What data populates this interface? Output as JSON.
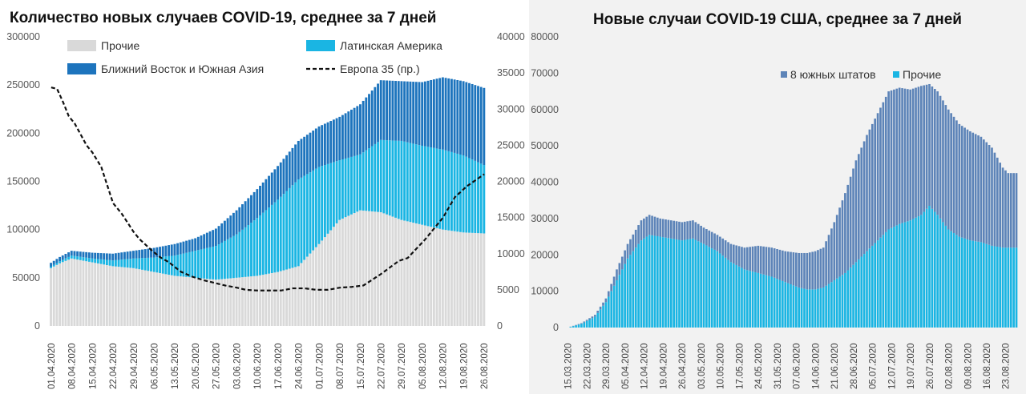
{
  "colors": {
    "others_grey": "#d9d9d9",
    "latam": "#1ab5e3",
    "me_sa": "#1d74bd",
    "europe": "#111111",
    "south8": "#5d84b8",
    "us_others": "#1ab5e3"
  },
  "chart_data": [
    {
      "type": "bar",
      "title": "Количество новых случаев COVID-19, среднее за 7 дней",
      "stacked": true,
      "series_names": [
        "Прочие",
        "Латинская Америка",
        "Ближний Восток и Южная Азия",
        "Европа 35 (пр.)"
      ],
      "legend": [
        "Прочие",
        "Латинская Америка",
        "Ближний Восток и Южная Азия",
        "Европа 35 (пр.)"
      ],
      "legend_position": "top",
      "x_ticks": [
        "01.04.2020",
        "08.04.2020",
        "15.04.2020",
        "22.04.2020",
        "29.04.2020",
        "06.05.2020",
        "13.05.2020",
        "20.05.2020",
        "27.05.2020",
        "03.06.2020",
        "10.06.2020",
        "17.06.2020",
        "24.06.2020",
        "01.07.2020",
        "08.07.2020",
        "15.07.2020",
        "22.07.2020",
        "29.07.2020",
        "05.08.2020",
        "12.08.2020",
        "19.08.2020",
        "26.08.2020"
      ],
      "y_ticks": [
        "0",
        "50000",
        "100000",
        "150000",
        "200000",
        "250000",
        "300000"
      ],
      "y2_ticks": [
        "0",
        "5000",
        "10000",
        "15000",
        "20000",
        "25000",
        "30000",
        "35000",
        "40000"
      ],
      "ylim": [
        0,
        300000
      ],
      "y2lim": [
        0,
        40000
      ],
      "x_start": "01.04.2020",
      "x_end": "26.08.2020",
      "keypoints": {
        "others": [
          [
            0,
            60000
          ],
          [
            3,
            65000
          ],
          [
            7,
            70000
          ],
          [
            14,
            66000
          ],
          [
            21,
            62000
          ],
          [
            28,
            60000
          ],
          [
            35,
            56000
          ],
          [
            42,
            52000
          ],
          [
            49,
            50000
          ],
          [
            56,
            48000
          ],
          [
            63,
            50000
          ],
          [
            70,
            52000
          ],
          [
            77,
            56000
          ],
          [
            84,
            62000
          ],
          [
            91,
            85000
          ],
          [
            98,
            110000
          ],
          [
            105,
            120000
          ],
          [
            112,
            118000
          ],
          [
            119,
            110000
          ],
          [
            126,
            105000
          ],
          [
            133,
            100000
          ],
          [
            140,
            97000
          ],
          [
            147,
            96000
          ]
        ],
        "latam": [
          [
            0,
            1500
          ],
          [
            7,
            3000
          ],
          [
            14,
            4000
          ],
          [
            21,
            6000
          ],
          [
            28,
            10000
          ],
          [
            35,
            15000
          ],
          [
            42,
            21000
          ],
          [
            49,
            28000
          ],
          [
            56,
            35000
          ],
          [
            63,
            45000
          ],
          [
            70,
            60000
          ],
          [
            77,
            75000
          ],
          [
            84,
            90000
          ],
          [
            91,
            80000
          ],
          [
            98,
            62000
          ],
          [
            105,
            58000
          ],
          [
            112,
            75000
          ],
          [
            119,
            82000
          ],
          [
            126,
            82000
          ],
          [
            133,
            83000
          ],
          [
            140,
            80000
          ],
          [
            147,
            71000
          ]
        ],
        "me_sa": [
          [
            0,
            4000
          ],
          [
            7,
            5000
          ],
          [
            14,
            6000
          ],
          [
            21,
            7000
          ],
          [
            28,
            8000
          ],
          [
            35,
            10000
          ],
          [
            42,
            12000
          ],
          [
            49,
            13000
          ],
          [
            56,
            18000
          ],
          [
            63,
            25000
          ],
          [
            70,
            30000
          ],
          [
            77,
            35000
          ],
          [
            84,
            40000
          ],
          [
            91,
            42000
          ],
          [
            98,
            45000
          ],
          [
            105,
            52000
          ],
          [
            112,
            62000
          ],
          [
            119,
            62000
          ],
          [
            126,
            66000
          ],
          [
            133,
            75000
          ],
          [
            140,
            77000
          ],
          [
            147,
            80000
          ]
        ],
        "europe": [
          [
            0,
            33000
          ],
          [
            2,
            32800
          ],
          [
            4,
            31000
          ],
          [
            6,
            29000
          ],
          [
            8,
            28000
          ],
          [
            10,
            26500
          ],
          [
            12,
            25000
          ],
          [
            14,
            24000
          ],
          [
            17,
            22000
          ],
          [
            21,
            17000
          ],
          [
            24,
            15500
          ],
          [
            28,
            13000
          ],
          [
            30,
            12000
          ],
          [
            34,
            10500
          ],
          [
            37,
            9500
          ],
          [
            40,
            8800
          ],
          [
            44,
            7500
          ],
          [
            48,
            6800
          ],
          [
            52,
            6300
          ],
          [
            56,
            5900
          ],
          [
            59,
            5600
          ],
          [
            63,
            5300
          ],
          [
            66,
            5000
          ],
          [
            70,
            4900
          ],
          [
            74,
            4900
          ],
          [
            78,
            4900
          ],
          [
            82,
            5200
          ],
          [
            86,
            5200
          ],
          [
            90,
            5000
          ],
          [
            94,
            5000
          ],
          [
            98,
            5300
          ],
          [
            102,
            5400
          ],
          [
            106,
            5600
          ],
          [
            112,
            7200
          ],
          [
            118,
            9000
          ],
          [
            121,
            9400
          ],
          [
            127,
            12000
          ],
          [
            133,
            15000
          ],
          [
            137,
            17800
          ],
          [
            141,
            19300
          ],
          [
            147,
            21000
          ]
        ]
      }
    },
    {
      "type": "bar",
      "title": "Новые случаи COVID-19  США, среднее за 7 дней",
      "stacked": true,
      "series_names": [
        "8 южных штатов",
        "Прочие"
      ],
      "legend": [
        "8 южных штатов",
        "Прочие"
      ],
      "legend_position": "top-right",
      "x_ticks": [
        "15.03.2020",
        "22.03.2020",
        "29.03.2020",
        "05.04.2020",
        "12.04.2020",
        "19.04.2020",
        "26.04.2020",
        "03.05.2020",
        "10.05.2020",
        "17.05.2020",
        "24.05.2020",
        "31.05.2020",
        "07.06.2020",
        "14.06.2020",
        "21.06.2020",
        "28.06.2020",
        "05.07.2020",
        "12.07.2020",
        "19.07.2020",
        "26.07.2020",
        "02.08.2020",
        "09.08.2020",
        "16.08.2020",
        "23.08.2020"
      ],
      "y_ticks": [
        "0",
        "10000",
        "20000",
        "30000",
        "40000",
        "50000",
        "60000",
        "70000",
        "80000"
      ],
      "ylim": [
        0,
        80000
      ],
      "x_start": "15.03.2020",
      "x_end": "27.08.2020",
      "keypoints": {
        "others": [
          [
            0,
            0
          ],
          [
            5,
            1000
          ],
          [
            10,
            3000
          ],
          [
            14,
            7000
          ],
          [
            18,
            13000
          ],
          [
            22,
            19000
          ],
          [
            27,
            24000
          ],
          [
            30,
            25500
          ],
          [
            34,
            25000
          ],
          [
            38,
            24500
          ],
          [
            42,
            24000
          ],
          [
            46,
            24500
          ],
          [
            50,
            23000
          ],
          [
            55,
            21000
          ],
          [
            60,
            18000
          ],
          [
            65,
            16000
          ],
          [
            70,
            15000
          ],
          [
            75,
            14000
          ],
          [
            80,
            12500
          ],
          [
            85,
            11000
          ],
          [
            88,
            10500
          ],
          [
            91,
            10500
          ],
          [
            94,
            11000
          ],
          [
            98,
            13000
          ],
          [
            102,
            15000
          ],
          [
            106,
            18000
          ],
          [
            110,
            21000
          ],
          [
            114,
            24000
          ],
          [
            118,
            27000
          ],
          [
            122,
            28500
          ],
          [
            126,
            29500
          ],
          [
            130,
            31000
          ],
          [
            133,
            33500
          ],
          [
            136,
            31000
          ],
          [
            140,
            27000
          ],
          [
            144,
            25000
          ],
          [
            148,
            24000
          ],
          [
            152,
            23500
          ],
          [
            156,
            22500
          ],
          [
            160,
            22000
          ],
          [
            162,
            22000
          ],
          [
            165,
            22000
          ]
        ],
        "south8": [
          [
            0,
            0
          ],
          [
            5,
            200
          ],
          [
            10,
            500
          ],
          [
            14,
            1000
          ],
          [
            18,
            3000
          ],
          [
            22,
            4000
          ],
          [
            27,
            5500
          ],
          [
            30,
            5500
          ],
          [
            34,
            5000
          ],
          [
            38,
            5000
          ],
          [
            42,
            5000
          ],
          [
            46,
            5000
          ],
          [
            50,
            4500
          ],
          [
            55,
            4500
          ],
          [
            60,
            5000
          ],
          [
            65,
            6000
          ],
          [
            70,
            7500
          ],
          [
            75,
            8000
          ],
          [
            80,
            8500
          ],
          [
            85,
            9500
          ],
          [
            88,
            10000
          ],
          [
            91,
            10500
          ],
          [
            94,
            11000
          ],
          [
            98,
            16000
          ],
          [
            102,
            22000
          ],
          [
            106,
            28000
          ],
          [
            110,
            32000
          ],
          [
            114,
            35000
          ],
          [
            118,
            38000
          ],
          [
            122,
            37500
          ],
          [
            126,
            36000
          ],
          [
            130,
            35500
          ],
          [
            133,
            33500
          ],
          [
            136,
            34000
          ],
          [
            140,
            33000
          ],
          [
            144,
            31000
          ],
          [
            148,
            30000
          ],
          [
            152,
            29000
          ],
          [
            156,
            27000
          ],
          [
            160,
            22000
          ],
          [
            162,
            20500
          ],
          [
            165,
            20500
          ]
        ]
      }
    }
  ]
}
